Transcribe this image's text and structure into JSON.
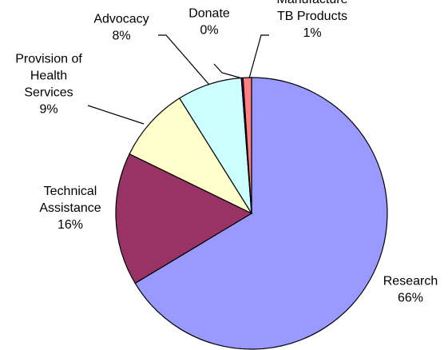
{
  "chart_data": {
    "type": "pie",
    "slices": [
      {
        "label": "Research",
        "value_label": "66%",
        "value": 66.4,
        "color": "#9999ff"
      },
      {
        "label": "Technical Assistance",
        "value_label": "16%",
        "value": 15.8,
        "color": "#993366"
      },
      {
        "label": "Provision of Health Services",
        "value_label": "9%",
        "value": 8.9,
        "color": "#ffffcc"
      },
      {
        "label": "Advocacy",
        "value_label": "8%",
        "value": 7.7,
        "color": "#ccffff"
      },
      {
        "label": "Donate",
        "value_label": "0%",
        "value": 0.2,
        "color": "#660066"
      },
      {
        "label": "Manufacture TB Products",
        "value_label": "1%",
        "value": 1.0,
        "color": "#ff8080"
      }
    ],
    "label_lines": [
      {
        "label": [
          "Research"
        ],
        "value_label": "66%"
      },
      {
        "label": [
          "Technical",
          "Assistance"
        ],
        "value_label": "16%"
      },
      {
        "label": [
          "Provision of",
          "Health",
          "Services"
        ],
        "value_label": "9%"
      },
      {
        "label": [
          "Advocacy"
        ],
        "value_label": "8%"
      },
      {
        "label": [
          "Donate"
        ],
        "value_label": "0%"
      },
      {
        "label": [
          "Manufacture",
          "TB Products"
        ],
        "value_label": "1%"
      }
    ]
  }
}
